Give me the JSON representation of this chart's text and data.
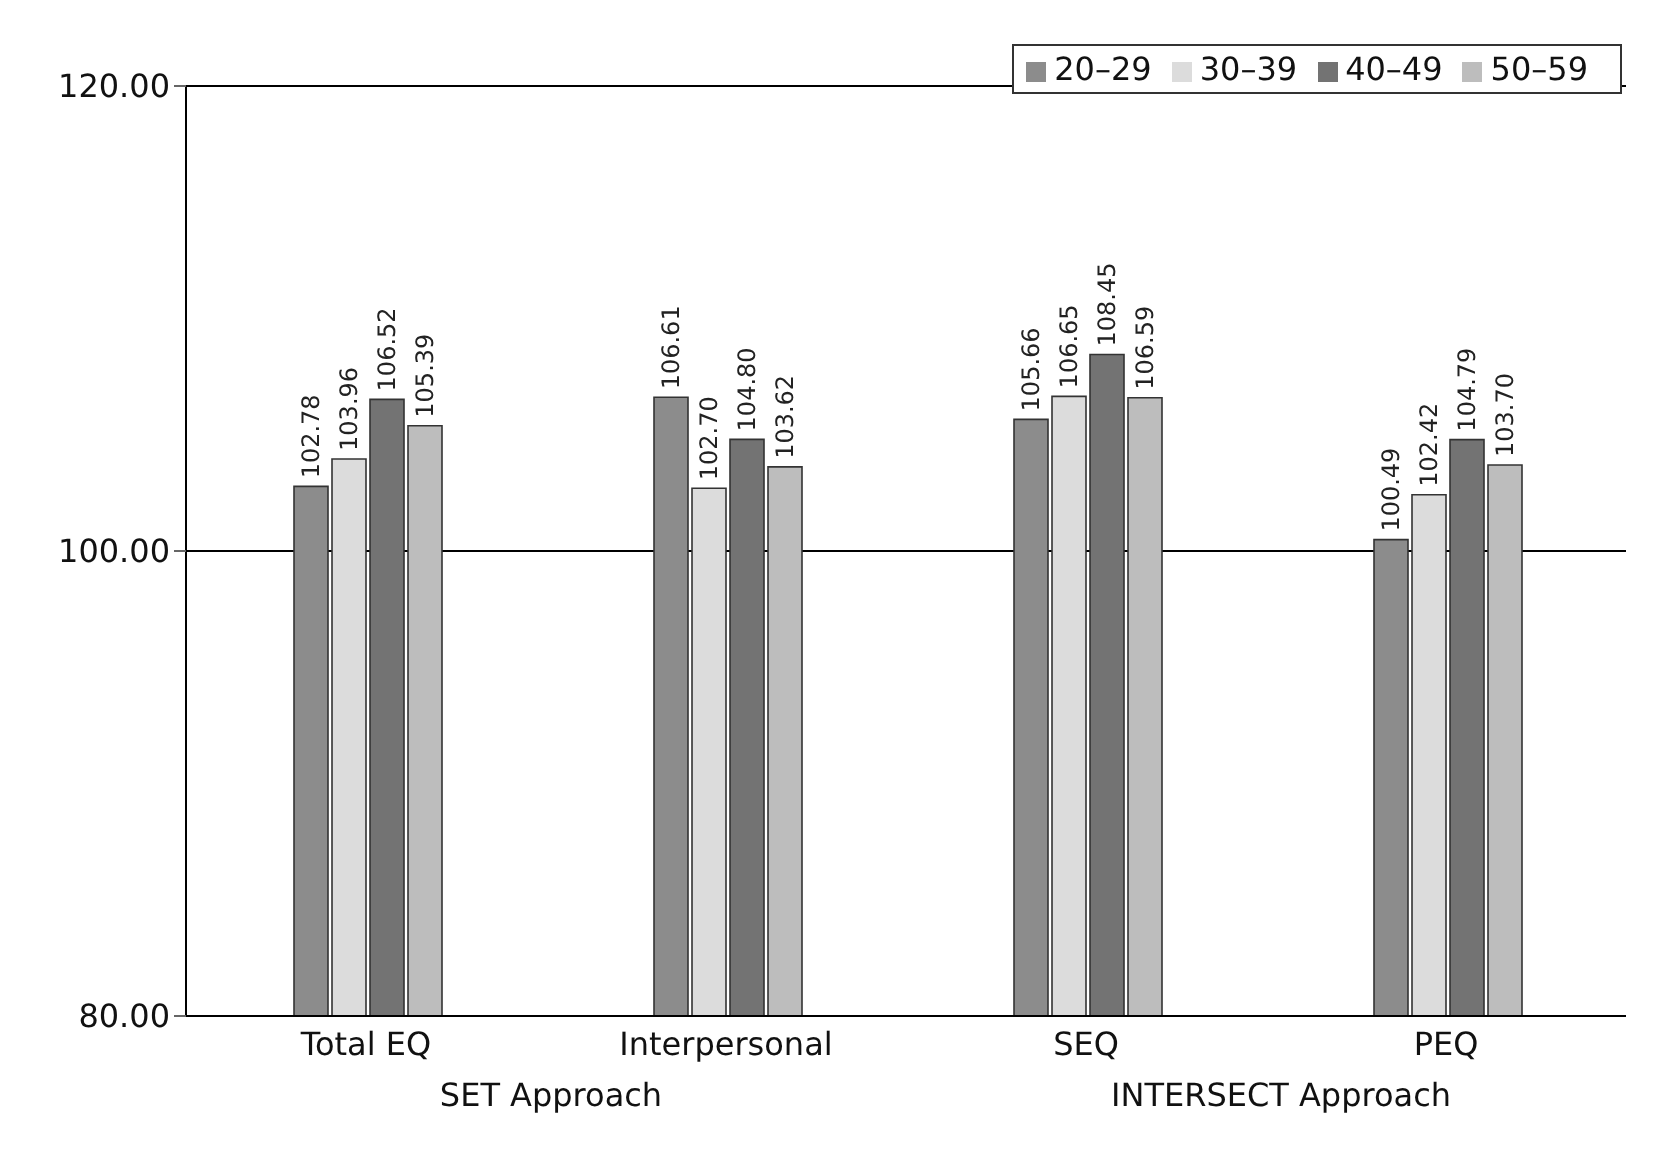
{
  "chart_data": {
    "type": "bar",
    "categories": [
      "Total EQ",
      "Interpersonal",
      "SEQ",
      "PEQ"
    ],
    "series": [
      {
        "name": "20–29",
        "color": "#8c8c8c",
        "values": [
          102.78,
          106.61,
          105.66,
          100.49
        ],
        "value_labels": [
          "102.78",
          "106.61",
          "105.66",
          "100.49"
        ]
      },
      {
        "name": "30–39",
        "color": "#dcdcdc",
        "values": [
          103.96,
          102.7,
          106.65,
          102.42
        ],
        "value_labels": [
          "103.96",
          "102.70",
          "106.65",
          "102.42"
        ]
      },
      {
        "name": "40–49",
        "color": "#737373",
        "values": [
          106.52,
          104.8,
          108.45,
          104.79
        ],
        "value_labels": [
          "106.52",
          "104.80",
          "108.45",
          "104.79"
        ]
      },
      {
        "name": "50–59",
        "color": "#bdbdbd",
        "values": [
          105.39,
          103.62,
          106.59,
          103.7
        ],
        "value_labels": [
          "105.39",
          "103.62",
          "106.59",
          "103.70"
        ]
      }
    ],
    "ylim": [
      80,
      120
    ],
    "yticks": [
      {
        "value": 80,
        "label": "80.00"
      },
      {
        "value": 100,
        "label": "100.00"
      },
      {
        "value": 120,
        "label": "120.00"
      }
    ],
    "grid": "y",
    "legend": "top right",
    "annotations": [
      "SET Approach",
      "INTERSECT Approach"
    ]
  }
}
